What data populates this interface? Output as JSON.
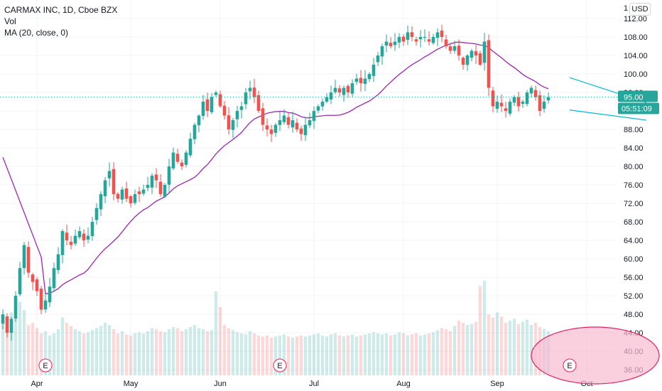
{
  "legend": {
    "title": "CARMAX INC, 1D, Cboe BZX",
    "vol": "Vol",
    "ma": "MA (20, close, 0)"
  },
  "pane_number": "1",
  "currency": "USD",
  "colors": {
    "up": "#26a69a",
    "down": "#ef5350",
    "ma": "#9c27b0",
    "trend": "#00bcd4",
    "price_line": "#26a69a",
    "grid": "#f0f3fa",
    "ellipse_stroke": "#e91e63",
    "ellipse_fill": "#f8bbd0"
  },
  "chart_data": {
    "type": "candlestick",
    "symbol": "CARMAX INC",
    "interval": "1D",
    "exchange": "Cboe BZX",
    "y_ticks": [
      36,
      40,
      44,
      48,
      52,
      56,
      60,
      64,
      68,
      72,
      76,
      80,
      84,
      88,
      92,
      96,
      100,
      104,
      108,
      112
    ],
    "y_tick_labels": [
      "36.00",
      "40.00",
      "44.00",
      "48.00",
      "52.00",
      "56.00",
      "60.00",
      "64.00",
      "68.00",
      "72.00",
      "76.00",
      "80.00",
      "84.00",
      "88.00",
      "92.00",
      "96.00",
      "100.00",
      "104.00",
      "108.00",
      "112.00"
    ],
    "ylim": [
      34.8,
      116
    ],
    "x_labels": [
      {
        "label": "Apr",
        "index": 8
      },
      {
        "label": "May",
        "index": 30
      },
      {
        "label": "Jun",
        "index": 51
      },
      {
        "label": "Jul",
        "index": 73
      },
      {
        "label": "Aug",
        "index": 94
      },
      {
        "label": "Sep",
        "index": 116
      },
      {
        "label": "Oct",
        "index": 137
      }
    ],
    "earnings_markers": [
      {
        "label": "E",
        "index": 10
      },
      {
        "label": "E",
        "index": 65
      },
      {
        "label": "E",
        "index": 133
      }
    ],
    "last_price_label": "95.00",
    "countdown_label": "05:51:09",
    "last_price": 95.0,
    "trend_lines": [
      {
        "from": {
          "index": 133,
          "price": 99.2
        },
        "to": {
          "index": 151,
          "price": 93.8
        }
      },
      {
        "from": {
          "index": 133,
          "price": 92.2
        },
        "to": {
          "index": 151,
          "price": 90.0
        }
      }
    ],
    "highlight": {
      "type": "ellipse",
      "index_from": 124,
      "index_to": 154,
      "area": "volume"
    },
    "closes": [
      48,
      44,
      47,
      52,
      58,
      63,
      57,
      55,
      53,
      49,
      51,
      54,
      58,
      61,
      66,
      64,
      63,
      65,
      66,
      64,
      65,
      68,
      71,
      74,
      77,
      79,
      74,
      73,
      75,
      73,
      72,
      74,
      74,
      75,
      76,
      78,
      77,
      74,
      76,
      80,
      83,
      81,
      80,
      83,
      86,
      89,
      91,
      94,
      92,
      95,
      96,
      93,
      91,
      88,
      90,
      92,
      93,
      96,
      97,
      95,
      92,
      89,
      88,
      87,
      89,
      90,
      91,
      89,
      90,
      88,
      87,
      89,
      90,
      92,
      93,
      94,
      95,
      96,
      97,
      96,
      97,
      96,
      98,
      99,
      98,
      99,
      100,
      102,
      104,
      106,
      107,
      106,
      107,
      108,
      107,
      109,
      108,
      107,
      108,
      108,
      107,
      108,
      109,
      108,
      106,
      105,
      106,
      104,
      102,
      104,
      105,
      104,
      102,
      107,
      97,
      93,
      94,
      93,
      92,
      94,
      95,
      93,
      94,
      96,
      97,
      95,
      92,
      94,
      95
    ],
    "volume": [
      52,
      45,
      60,
      55,
      70,
      62,
      48,
      50,
      45,
      40,
      42,
      38,
      40,
      44,
      55,
      50,
      47,
      44,
      42,
      40,
      41,
      43,
      45,
      47,
      50,
      48,
      44,
      40,
      42,
      39,
      38,
      40,
      41,
      40,
      42,
      45,
      44,
      42,
      41,
      44,
      46,
      45,
      42,
      44,
      46,
      48,
      45,
      44,
      42,
      43,
      80,
      65,
      48,
      45,
      43,
      41,
      40,
      39,
      42,
      40,
      38,
      37,
      38,
      36,
      37,
      38,
      39,
      37,
      36,
      37,
      38,
      37,
      38,
      39,
      40,
      38,
      37,
      39,
      40,
      38,
      37,
      38,
      39,
      37,
      38,
      39,
      40,
      41,
      40,
      39,
      40,
      38,
      39,
      41,
      40,
      38,
      39,
      40,
      38,
      39,
      40,
      41,
      43,
      45,
      44,
      42,
      47,
      52,
      50,
      48,
      49,
      51,
      85,
      90,
      58,
      55,
      60,
      56,
      50,
      52,
      54,
      49,
      51,
      53,
      48,
      50,
      46,
      44,
      42
    ]
  }
}
